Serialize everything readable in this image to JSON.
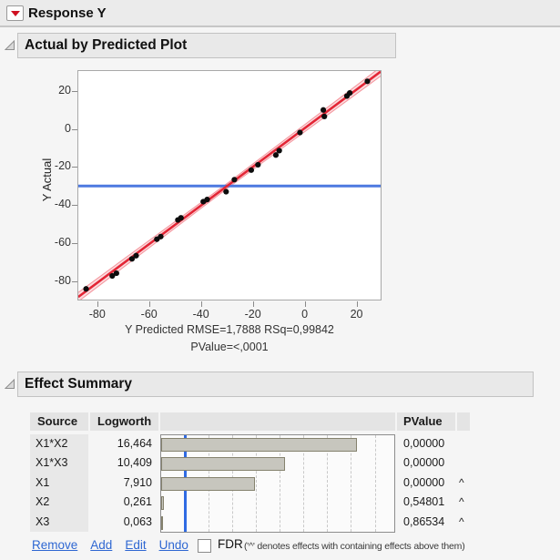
{
  "response_header": {
    "title": "Response Y"
  },
  "sections": {
    "actual_by_predicted": {
      "title": "Actual by Predicted Plot"
    },
    "effect_summary": {
      "title": "Effect Summary"
    }
  },
  "chart_data": [
    {
      "type": "scatter",
      "title": "Actual by Predicted Plot",
      "xlabel": "Y Predicted",
      "ylabel": "Y Actual",
      "xlim": [
        -87.3,
        29.3
      ],
      "ylim": [
        -89.4,
        30.3
      ],
      "x_ticks": [
        -80,
        -60,
        -40,
        -20,
        0,
        20
      ],
      "y_ticks": [
        20,
        0,
        -20,
        -40,
        -60,
        -80
      ],
      "grid": false,
      "points": [
        [
          -84.3,
          -83.8
        ],
        [
          -74.2,
          -77.0
        ],
        [
          -72.6,
          -75.6
        ],
        [
          -66.6,
          -68.1
        ],
        [
          -65.0,
          -66.4
        ],
        [
          -57.0,
          -57.8
        ],
        [
          -55.5,
          -56.4
        ],
        [
          -48.9,
          -47.7
        ],
        [
          -47.7,
          -46.6
        ],
        [
          -39.1,
          -38.1
        ],
        [
          -37.6,
          -37.0
        ],
        [
          -30.3,
          -32.9
        ],
        [
          -27.1,
          -26.6
        ],
        [
          -20.6,
          -21.6
        ],
        [
          -18.0,
          -18.8
        ],
        [
          -11.1,
          -13.7
        ],
        [
          -9.8,
          -11.4
        ],
        [
          -1.8,
          -1.9
        ],
        [
          7.2,
          9.9
        ],
        [
          7.6,
          6.5
        ],
        [
          16.3,
          17.2
        ],
        [
          17.4,
          18.8
        ],
        [
          24.2,
          24.9
        ]
      ],
      "fit_line": {
        "x1": -87.3,
        "y1": -88.0,
        "x2": 29.3,
        "y2": 30.0,
        "color": "#e32636"
      },
      "mean_line": {
        "y": -29.9,
        "color": "#4d79e0"
      },
      "caption_line1": "Y Predicted RMSE=1,7888 RSq=0,99842",
      "caption_line2": "PValue=<,0001",
      "stats": {
        "rmse": "1,7888",
        "rsq": "0,99842",
        "pvalue": "<,0001"
      }
    },
    {
      "type": "bar",
      "title": "Effect Summary",
      "categories": [
        "X1*X2",
        "X1*X3",
        "X1",
        "X2",
        "X3"
      ],
      "values": [
        16.464,
        10.409,
        7.91,
        0.261,
        0.063
      ],
      "value_labels": [
        "16,464",
        "10,409",
        "7,910",
        "0,261",
        "0,063"
      ],
      "pvalues": [
        "0,00000",
        "0,00000",
        "0,00000",
        "0,54801",
        "0,86534"
      ],
      "carets": [
        "",
        "",
        "^",
        "^",
        "^"
      ],
      "threshold": 2.0,
      "xlim": [
        0,
        19.8
      ],
      "gridline_step": 2,
      "legend_position": "none"
    }
  ],
  "effect_table": {
    "headers": {
      "source": "Source",
      "logworth": "Logworth",
      "pvalue": "PValue"
    }
  },
  "footer": {
    "links": [
      "Remove",
      "Add",
      "Edit",
      "Undo"
    ],
    "fdr_label": "FDR",
    "fdr_checked": false,
    "note": "('^' denotes effects with containing effects above them)"
  },
  "colors": {
    "fit_line": "#e32636",
    "confidence_band": "rgba(232,38,54,0.16)",
    "mean_line": "#4d79e0",
    "threshold_line": "#2f6be3",
    "bar_fill": "#c7c6be",
    "bar_border": "#85826e",
    "link_blue": "#2e67d2",
    "hotspot_red": "#cf1020"
  }
}
